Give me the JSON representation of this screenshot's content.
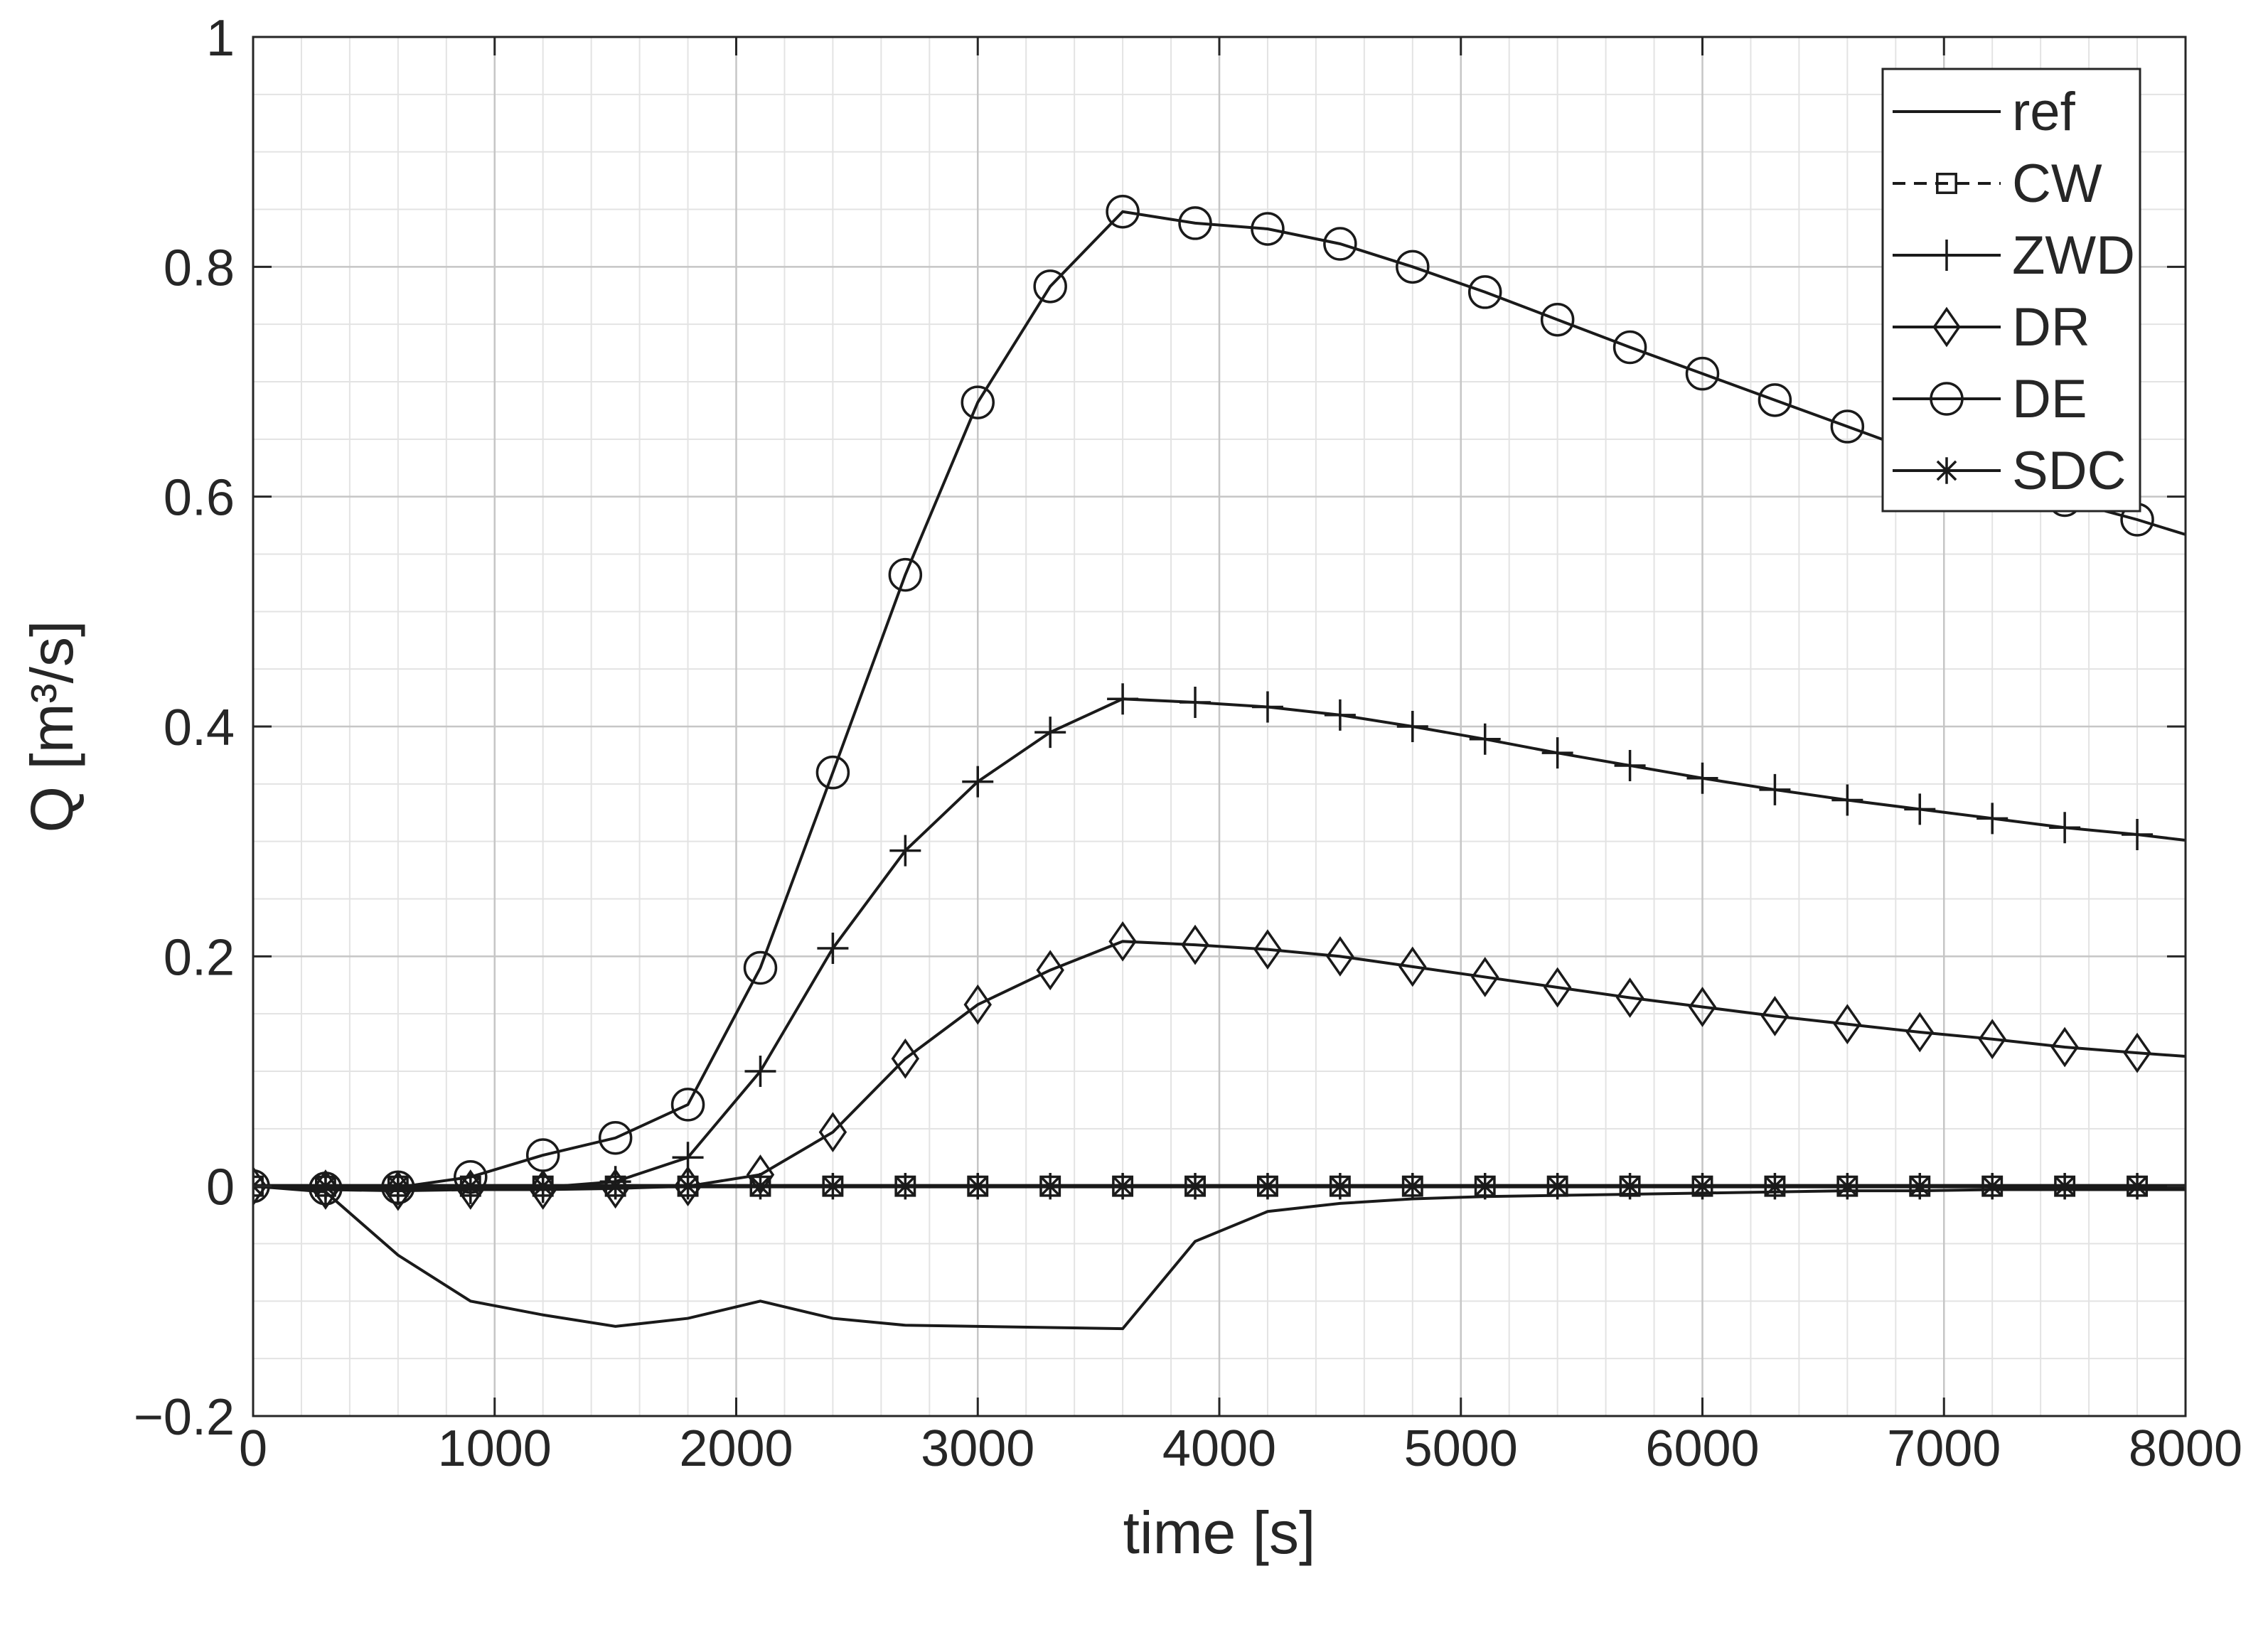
{
  "chart_data": {
    "type": "line",
    "xlabel": "time [s]",
    "ylabel": "Q [m³/s]",
    "xlim": [
      0,
      8000
    ],
    "ylim": [
      -0.2,
      1
    ],
    "x_ticks": [
      0,
      1000,
      2000,
      3000,
      4000,
      5000,
      6000,
      7000,
      8000
    ],
    "x_tick_labels": [
      "0",
      "1000",
      "2000",
      "3000",
      "4000",
      "5000",
      "6000",
      "7000",
      "8000"
    ],
    "y_ticks": [
      -0.2,
      0,
      0.2,
      0.4,
      0.6,
      0.8,
      1
    ],
    "y_tick_labels": [
      "−0.2",
      "0",
      "0.2",
      "0.4",
      "0.6",
      "0.8",
      "1"
    ],
    "grid": true,
    "minor_grid": true,
    "legend_position": "top-right",
    "x": [
      0,
      300,
      600,
      900,
      1200,
      1500,
      1800,
      2100,
      2400,
      2700,
      3000,
      3300,
      3600,
      3900,
      4200,
      4500,
      4800,
      5100,
      5400,
      5700,
      6000,
      6300,
      6600,
      6900,
      7200,
      7500,
      7800,
      8000
    ],
    "series": [
      {
        "name": "ref",
        "marker": "none",
        "line": "solid",
        "values": [
          0,
          -0.005,
          -0.06,
          -0.1,
          -0.112,
          -0.122,
          -0.115,
          -0.1,
          -0.115,
          -0.121,
          -0.122,
          -0.123,
          -0.124,
          -0.048,
          -0.022,
          -0.015,
          -0.011,
          -0.009,
          -0.008,
          -0.007,
          -0.006,
          -0.005,
          -0.004,
          -0.004,
          -0.003,
          -0.003,
          -0.003,
          -0.003
        ]
      },
      {
        "name": "CW",
        "marker": "square",
        "line": "dashed",
        "values": [
          0,
          0,
          0,
          0,
          0,
          0,
          0,
          0,
          0,
          0,
          0,
          0,
          0,
          0,
          0,
          0,
          0,
          0,
          0,
          0,
          0,
          0,
          0,
          0,
          0,
          0,
          0,
          0
        ]
      },
      {
        "name": "ZWD",
        "marker": "plus",
        "line": "solid",
        "values": [
          0,
          -0.002,
          -0.003,
          -0.002,
          -0.001,
          0.004,
          0.025,
          0.1,
          0.207,
          0.292,
          0.352,
          0.395,
          0.424,
          0.421,
          0.417,
          0.41,
          0.4,
          0.389,
          0.377,
          0.366,
          0.355,
          0.345,
          0.336,
          0.328,
          0.32,
          0.312,
          0.306,
          0.301
        ]
      },
      {
        "name": "DR",
        "marker": "diamond",
        "line": "solid",
        "values": [
          0,
          -0.003,
          -0.004,
          -0.003,
          -0.003,
          -0.002,
          0,
          0.01,
          0.047,
          0.111,
          0.158,
          0.188,
          0.213,
          0.21,
          0.206,
          0.2,
          0.191,
          0.182,
          0.173,
          0.164,
          0.156,
          0.148,
          0.141,
          0.134,
          0.128,
          0.121,
          0.116,
          0.113
        ]
      },
      {
        "name": "DE",
        "marker": "circle",
        "line": "solid",
        "values": [
          0,
          -0.002,
          -0.001,
          0.008,
          0.027,
          0.042,
          0.071,
          0.19,
          0.36,
          0.532,
          0.682,
          0.783,
          0.848,
          0.838,
          0.833,
          0.82,
          0.8,
          0.778,
          0.754,
          0.73,
          0.707,
          0.684,
          0.661,
          0.638,
          0.616,
          0.597,
          0.58,
          0.567
        ]
      },
      {
        "name": "SDC",
        "marker": "star",
        "line": "solid",
        "values": [
          0,
          0,
          0,
          0,
          0,
          0,
          0,
          0,
          0,
          0,
          0,
          0,
          0,
          0,
          0,
          0,
          0,
          0,
          0,
          0,
          0,
          0,
          0,
          0,
          0,
          0,
          0,
          0
        ]
      }
    ]
  }
}
